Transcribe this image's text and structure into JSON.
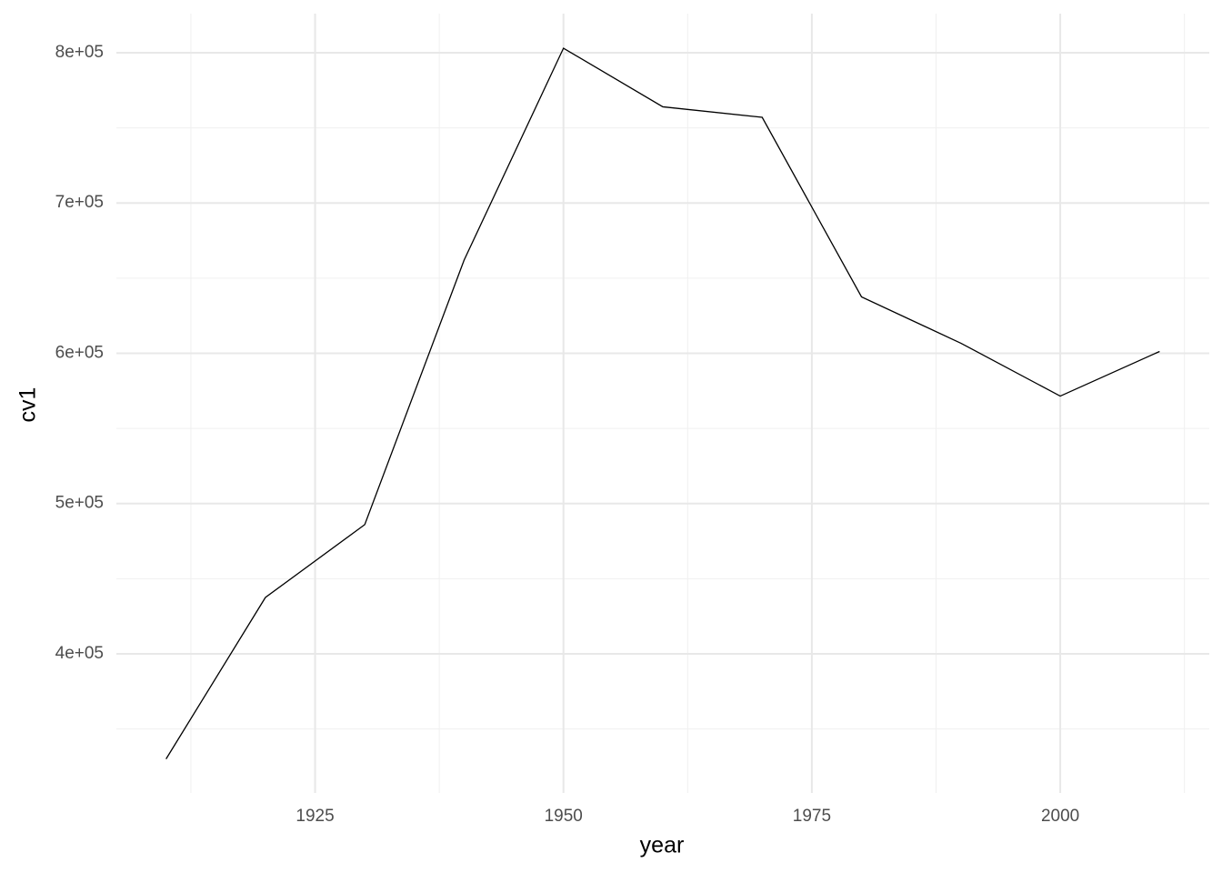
{
  "chart_data": {
    "type": "line",
    "x_label": "year",
    "y_label": "cv1",
    "x": [
      1910,
      1920,
      1930,
      1940,
      1950,
      1960,
      1970,
      1980,
      1990,
      2000,
      2010
    ],
    "series": [
      {
        "color": "#000000",
        "values": [
          330000,
          437500,
          486000,
          662000,
          803000,
          764000,
          757000,
          637500,
          606700,
          571500,
          601200
        ]
      }
    ],
    "xlim": [
      1905,
      2015
    ],
    "ylim": [
      307400,
      826000
    ],
    "xticks": [
      1925,
      1950,
      1975,
      2000
    ],
    "yticks": [
      {
        "value": 400000,
        "label": "4e+05"
      },
      {
        "value": 500000,
        "label": "5e+05"
      },
      {
        "value": 600000,
        "label": "6e+05"
      },
      {
        "value": 700000,
        "label": "7e+05"
      },
      {
        "value": 800000,
        "label": "8e+05"
      }
    ],
    "xminorticks": [
      1912.5,
      1937.5,
      1962.5,
      1987.5,
      2012.5
    ],
    "yminorticks": [
      350000,
      450000,
      550000,
      650000,
      750000
    ],
    "grid": true
  }
}
